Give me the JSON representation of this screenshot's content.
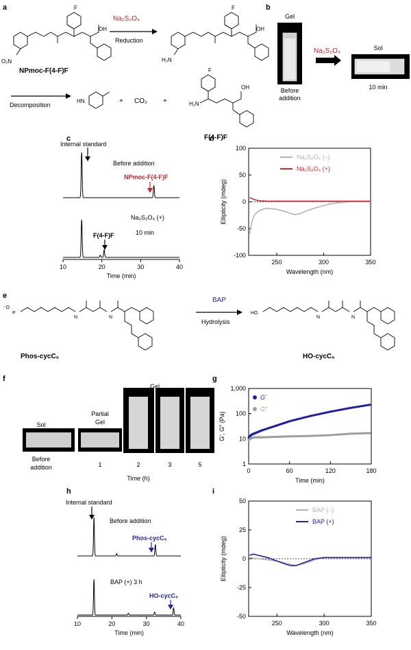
{
  "panels": {
    "a": {
      "letter": "a",
      "reagent": "Na₂S₂O₄",
      "step1": "Reduction",
      "step2": "Decomposition",
      "start_name": "NPmoc-F(4-F)F",
      "product_name": "F(4-F)F",
      "co2": "CO₂",
      "plus": "+"
    },
    "b": {
      "letter": "b",
      "gel": "Gel",
      "before": "Before",
      "addition": "addition",
      "reagent": "Na₂S₂O₄",
      "sol": "Sol",
      "time": "10 min"
    },
    "c": {
      "letter": "c",
      "internal_standard": "Internal standard",
      "before_addition": "Before addition",
      "peak_label": "NPmoc-F(4-F)F",
      "condition": "Na₂S₂O₄ (+)",
      "time": "10 min",
      "product_peak": "F(4-F)F"
    },
    "d": {
      "letter": "d"
    },
    "e": {
      "letter": "e",
      "enzyme": "BAP",
      "step": "Hydrolysis",
      "start_name": "Phos-cycC₆",
      "product_name": "HO-cycC₆"
    },
    "f": {
      "letter": "f",
      "gel": "Gel",
      "sol": "Sol",
      "partial": "Partial",
      "partial_gel": "Gel",
      "before": "Before",
      "addition": "addition",
      "times": [
        "1",
        "2",
        "3",
        "5"
      ],
      "axis": "Time (h)"
    },
    "g": {
      "letter": "g"
    },
    "h": {
      "letter": "h",
      "internal_standard": "Internal standard",
      "before_addition": "Before addition",
      "peak_label": "Phos-cycC₆",
      "condition": "BAP (+) 3 h",
      "product_peak": "HO-cycC₆"
    },
    "i": {
      "letter": "i"
    }
  },
  "chart_data": [
    {
      "id": "c",
      "type": "line",
      "xlabel": "Time (min)",
      "xlim": [
        10,
        40
      ],
      "x_ticks": [
        10,
        20,
        30,
        40
      ],
      "series": [
        {
          "peaks": [
            {
              "x": 14.8,
              "h": 1.0
            },
            {
              "x": 33.4,
              "h": 0.27
            }
          ]
        },
        {
          "peaks": [
            {
              "x": 14.8,
              "h": 1.0
            },
            {
              "x": 20.6,
              "h": 0.2
            },
            {
              "x": 19.6,
              "h": 0.06
            }
          ]
        }
      ]
    },
    {
      "id": "d",
      "type": "line",
      "xlabel": "Wavelength (nm)",
      "ylabel": "Ellipticity (mdeg)",
      "xlim": [
        220,
        350
      ],
      "ylim": [
        -100,
        100
      ],
      "x_ticks": [
        250,
        300,
        350
      ],
      "y_ticks": [
        -100,
        -50,
        0,
        50,
        100
      ],
      "series": [
        {
          "name": "Na₂S₂O₄ (–)",
          "color": "#b3b3b3",
          "x": [
            221,
            223,
            226,
            230,
            235,
            240,
            250,
            260,
            265,
            270,
            275,
            280,
            290,
            300,
            310,
            320,
            330,
            350
          ],
          "y": [
            -60,
            -40,
            -25,
            -18,
            -14,
            -12,
            -14,
            -19,
            -22,
            -24,
            -22,
            -18,
            -12,
            -7,
            -3,
            -1,
            0,
            0
          ]
        },
        {
          "name": "Na₂S₂O₄ (+)",
          "color": "#d62728",
          "x": [
            221,
            225,
            230,
            240,
            260,
            300,
            350
          ],
          "y": [
            8,
            5,
            2,
            1,
            1,
            1,
            1
          ]
        }
      ]
    },
    {
      "id": "g",
      "type": "scatter",
      "xlabel": "Time (min)",
      "ylabel": "G′, G″ (Pa)",
      "xlim": [
        0,
        180
      ],
      "ylim": [
        1,
        1000
      ],
      "yscale": "log",
      "x_ticks": [
        0,
        60,
        120,
        180
      ],
      "y_ticks": [
        1,
        10,
        100,
        1000
      ],
      "y_tick_labels": [
        "1",
        "10",
        "100",
        "1,000"
      ],
      "series": [
        {
          "name": "G′",
          "color": "#1f1fa8",
          "x": [
            0,
            2,
            5,
            10,
            20,
            40,
            60,
            90,
            120,
            150,
            180
          ],
          "y": [
            11,
            13,
            15,
            17,
            22,
            33,
            50,
            80,
            120,
            170,
            230
          ]
        },
        {
          "name": "G″",
          "color": "#9e9e9e",
          "x": [
            0,
            2,
            5,
            10,
            20,
            40,
            60,
            90,
            120,
            150,
            180
          ],
          "y": [
            9,
            10,
            11,
            11.5,
            11.5,
            12,
            12.5,
            13,
            14,
            16,
            17
          ]
        }
      ]
    },
    {
      "id": "h",
      "type": "line",
      "xlabel": "Time (min)",
      "xlim": [
        10,
        40
      ],
      "x_ticks": [
        10,
        20,
        30,
        40
      ],
      "series": [
        {
          "peaks": [
            {
              "x": 14.8,
              "h": 1.0
            },
            {
              "x": 21.4,
              "h": 0.06
            },
            {
              "x": 32.6,
              "h": 0.3
            }
          ]
        },
        {
          "peaks": [
            {
              "x": 14.8,
              "h": 1.0
            },
            {
              "x": 24.8,
              "h": 0.05
            },
            {
              "x": 32.4,
              "h": 0.08
            },
            {
              "x": 37.9,
              "h": 0.2
            }
          ]
        }
      ]
    },
    {
      "id": "i",
      "type": "line",
      "xlabel": "Wavelength (nm)",
      "ylabel": "Ellipticity (mdeg)",
      "xlim": [
        220,
        350
      ],
      "ylim": [
        -50,
        50
      ],
      "x_ticks": [
        250,
        300,
        350
      ],
      "y_ticks": [
        -50,
        -25,
        0,
        25,
        50
      ],
      "series": [
        {
          "name": "BAP (–)",
          "color": "#b3b3b3",
          "x": [
            221,
            230,
            240,
            250,
            260,
            265,
            270,
            280,
            290,
            300,
            320,
            350
          ],
          "y": [
            1,
            0,
            -1,
            -2,
            -4,
            -5,
            -6,
            -4,
            -1,
            1,
            1,
            1
          ]
        },
        {
          "name": "BAP (+)",
          "color": "#1f1fa8",
          "x": [
            221,
            225,
            230,
            240,
            250,
            260,
            265,
            270,
            280,
            290,
            300,
            320,
            350
          ],
          "y": [
            3,
            4,
            3,
            1,
            -2,
            -5,
            -6,
            -6,
            -3,
            0,
            1,
            1,
            1
          ]
        }
      ]
    }
  ]
}
